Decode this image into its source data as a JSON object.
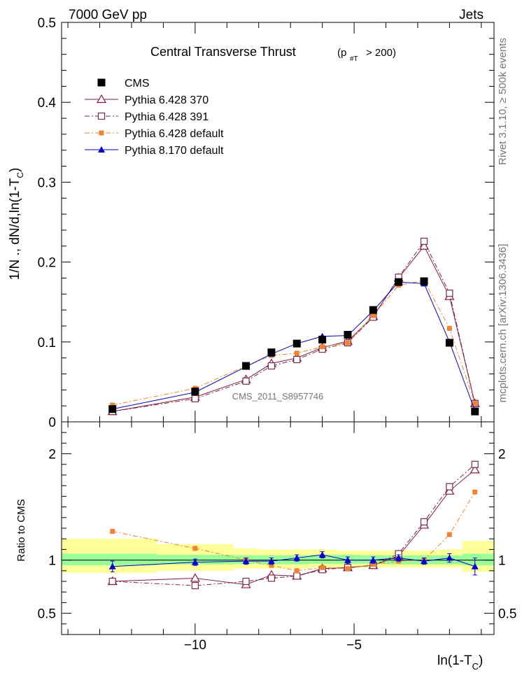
{
  "header": {
    "left_label": "7000 GeV pp",
    "right_label": "Jets"
  },
  "side_labels": {
    "rivet": "Rivet 3.1.10, ≥ 500k events",
    "mcplots": "mcplots.cern.ch [arXiv:1306.3436]"
  },
  "colors": {
    "CMS": "#000000",
    "Pythia 6.428 370": "#8b1a3c",
    "Pythia 6.428 391": "#7a2a4a",
    "Pythia 6.428 default": "#f08232",
    "Pythia 8.170 default": "#0000cc",
    "band_inner": "#99ff99",
    "band_outer": "#ffff99"
  },
  "chart_data": [
    {
      "type": "line",
      "panel": "main",
      "title": "Central Transverse Thrust",
      "title_sub": "(p",
      "title_sub_index": "#T",
      "title_sub_tail": "> 200)",
      "watermark": "CMS_2011_S8957746",
      "ylabel": "1/N ., dN/d,ln(1-T",
      "ylabel_sub": "C",
      "ylabel_tail": ")",
      "ylim": [
        0,
        0.5
      ],
      "xlim": [
        -14.2,
        -0.6
      ],
      "y_tick_labels": [
        "0",
        "0.1",
        "0.2",
        "0.3",
        "0.4",
        "0.5"
      ],
      "legend_position": "top-left",
      "x": [
        -12.6,
        -10.0,
        -8.4,
        -7.6,
        -6.8,
        -6.0,
        -5.2,
        -4.4,
        -3.6,
        -2.8,
        -2.0,
        -1.2
      ],
      "series": [
        {
          "name": "CMS",
          "marker": "filled-square",
          "line": "none",
          "values": [
            0.016,
            0.038,
            0.07,
            0.087,
            0.098,
            0.103,
            0.109,
            0.14,
            0.175,
            0.176,
            0.099,
            0.013
          ]
        },
        {
          "name": "Pythia 6.428 370",
          "marker": "open-triangle",
          "line": "solid",
          "values": [
            0.013,
            0.031,
            0.053,
            0.073,
            0.08,
            0.093,
            0.101,
            0.132,
            0.18,
            0.22,
            0.157,
            0.023
          ]
        },
        {
          "name": "Pythia 6.428 391",
          "marker": "open-square",
          "line": "dashdot",
          "values": [
            0.013,
            0.029,
            0.051,
            0.07,
            0.078,
            0.091,
            0.099,
            0.131,
            0.181,
            0.226,
            0.161,
            0.023
          ]
        },
        {
          "name": "Pythia 6.428 default",
          "marker": "small-filled-square",
          "line": "dashdot",
          "values": [
            0.021,
            0.042,
            0.07,
            0.083,
            0.086,
            0.094,
            0.099,
            0.133,
            0.171,
            0.177,
            0.117,
            0.023
          ]
        },
        {
          "name": "Pythia 8.170 default",
          "marker": "filled-triangle",
          "line": "solid",
          "values": [
            0.016,
            0.037,
            0.069,
            0.085,
            0.098,
            0.107,
            0.108,
            0.139,
            0.175,
            0.173,
            0.1,
            0.014
          ]
        }
      ]
    },
    {
      "type": "line",
      "panel": "ratio",
      "ylabel": "Ratio to CMS",
      "xlabel": "ln(1-T",
      "xlabel_sub": "C",
      "xlabel_tail": ")",
      "ylim": [
        0.3,
        2.3
      ],
      "xlim": [
        -14.2,
        -0.6
      ],
      "y_tick_labels": [
        "0.5",
        "1",
        "2"
      ],
      "y_tick_values": [
        0.5,
        1,
        2
      ],
      "x_tick_labels": [
        "−10",
        "−5"
      ],
      "x_tick_values": [
        -10,
        -5
      ],
      "x": [
        -12.6,
        -10.0,
        -8.4,
        -7.6,
        -6.8,
        -6.0,
        -5.2,
        -4.4,
        -3.6,
        -2.8,
        -2.0,
        -1.2
      ],
      "bands": {
        "edges": [
          -14.2,
          -11.2,
          -8.8,
          -8.0,
          -7.2,
          -6.4,
          -5.6,
          -4.8,
          -4.0,
          -3.2,
          -2.4,
          -1.6,
          -0.6
        ],
        "inner_low": [
          0.95,
          0.96,
          0.965,
          0.96,
          0.96,
          0.965,
          0.965,
          0.965,
          0.96,
          0.96,
          0.96,
          0.95
        ],
        "inner_high": [
          1.06,
          1.05,
          1.045,
          1.045,
          1.045,
          1.05,
          1.05,
          1.045,
          1.045,
          1.045,
          1.045,
          1.06
        ],
        "outer_low": [
          0.88,
          0.9,
          0.92,
          0.92,
          0.92,
          0.93,
          0.93,
          0.93,
          0.93,
          0.93,
          0.93,
          0.89
        ],
        "outer_high": [
          1.2,
          1.15,
          1.11,
          1.1,
          1.1,
          1.1,
          1.09,
          1.09,
          1.09,
          1.09,
          1.1,
          1.18
        ]
      },
      "series": [
        {
          "name": "Pythia 6.428 370",
          "values": [
            0.8,
            0.83,
            0.77,
            0.86,
            0.85,
            0.92,
            0.93,
            0.95,
            1.04,
            1.33,
            1.65,
            1.85
          ]
        },
        {
          "name": "Pythia 6.428 391",
          "values": [
            0.8,
            0.76,
            0.8,
            0.83,
            0.85,
            0.91,
            0.93,
            0.95,
            1.06,
            1.36,
            1.69,
            1.9
          ]
        },
        {
          "name": "Pythia 6.428 default",
          "values": [
            1.27,
            1.11,
            1.0,
            0.95,
            0.9,
            0.93,
            0.92,
            0.96,
            0.99,
            1.0,
            1.24,
            1.64
          ]
        },
        {
          "name": "Pythia 8.170 default",
          "values": [
            0.94,
            0.98,
            0.99,
            0.99,
            1.02,
            1.05,
            1.0,
            1.0,
            1.02,
            0.99,
            1.02,
            0.94
          ],
          "errors": [
            0.05,
            0.03,
            0.03,
            0.03,
            0.03,
            0.03,
            0.03,
            0.03,
            0.03,
            0.03,
            0.04,
            0.08
          ]
        }
      ]
    }
  ]
}
